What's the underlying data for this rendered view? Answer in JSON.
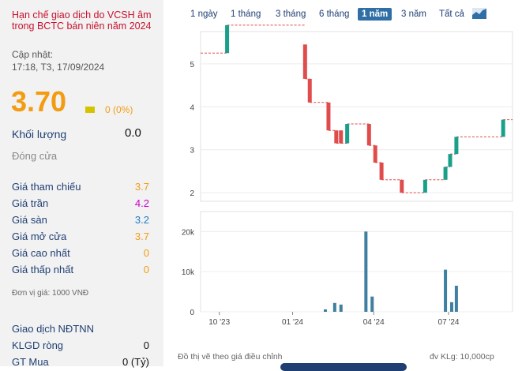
{
  "warning_text": "Hạn chế giao dịch do VCSH âm trong BCTC bán niên năm 2024",
  "update_label": "Cập nhật:",
  "update_value": "17:18, T3, 17/09/2024",
  "price": "3.70",
  "change": "0 (0%)",
  "colors": {
    "accent": "#f39c12",
    "up": "#1a9f8a",
    "down": "#e04b4b",
    "ceiling": "#cc00cc",
    "floor": "#1e7fc4",
    "nav": "#1f3f73"
  },
  "volume": {
    "label": "Khối lượng",
    "value": "0.0"
  },
  "close_label": "Đóng cửa",
  "stats": [
    {
      "label": "Giá tham chiếu",
      "value": "3.7",
      "color": "#f39c12"
    },
    {
      "label": "Giá trần",
      "value": "4.2",
      "color": "#cc00cc"
    },
    {
      "label": "Giá sàn",
      "value": "3.2",
      "color": "#1e7fc4"
    },
    {
      "label": "Giá mở cửa",
      "value": "3.7",
      "color": "#f39c12"
    },
    {
      "label": "Giá cao nhất",
      "value": "0",
      "color": "#f39c12"
    },
    {
      "label": "Giá thấp nhất",
      "value": "0",
      "color": "#f39c12"
    }
  ],
  "unit_note": "Đơn vị giá: 1000 VNĐ",
  "foreign": [
    {
      "label": "Giao dịch NĐTNN",
      "value": ""
    },
    {
      "label": "KLGD ròng",
      "value": "0"
    },
    {
      "label": "GT Mua",
      "value": "0 (Tỷ)"
    }
  ],
  "tabs": [
    "1 ngày",
    "1 tháng",
    "3 tháng",
    "6 tháng",
    "1 năm",
    "3 năm",
    "Tất cả"
  ],
  "active_tab": "1 năm",
  "chart_icon": "area-chart-icon",
  "chart_data": {
    "type": "candlestick",
    "price_axis": {
      "ticks": [
        2,
        3,
        4,
        5
      ],
      "ylim": [
        1.8,
        5.75
      ]
    },
    "volume_axis": {
      "ticks": [
        "0",
        "10k",
        "20k"
      ],
      "values": [
        0,
        10000,
        20000
      ],
      "ylim": [
        0,
        24000
      ]
    },
    "x_ticks": [
      {
        "label": "10 '23",
        "t": 0.06
      },
      {
        "label": "01 '24",
        "t": 0.295
      },
      {
        "label": "04 '24",
        "t": 0.555
      },
      {
        "label": "07 '24",
        "t": 0.795
      }
    ],
    "candles": [
      {
        "t": 0.085,
        "o": 5.25,
        "c": 5.9
      },
      {
        "t": 0.335,
        "o": 5.45,
        "c": 4.65
      },
      {
        "t": 0.35,
        "o": 4.65,
        "c": 4.1
      },
      {
        "t": 0.41,
        "o": 4.1,
        "c": 3.45
      },
      {
        "t": 0.435,
        "o": 3.45,
        "c": 3.15
      },
      {
        "t": 0.45,
        "o": 3.45,
        "c": 3.15
      },
      {
        "t": 0.47,
        "o": 3.15,
        "c": 3.6
      },
      {
        "t": 0.54,
        "o": 3.6,
        "c": 3.1
      },
      {
        "t": 0.56,
        "o": 3.1,
        "c": 2.7
      },
      {
        "t": 0.58,
        "o": 2.7,
        "c": 2.3
      },
      {
        "t": 0.645,
        "o": 2.3,
        "c": 2.0
      },
      {
        "t": 0.72,
        "o": 2.0,
        "c": 2.3
      },
      {
        "t": 0.785,
        "o": 2.3,
        "c": 2.6
      },
      {
        "t": 0.8,
        "o": 2.6,
        "c": 2.9
      },
      {
        "t": 0.82,
        "o": 2.9,
        "c": 3.3
      },
      {
        "t": 0.97,
        "o": 3.3,
        "c": 3.7
      }
    ],
    "volumes": [
      {
        "t": 0.4,
        "v": 600
      },
      {
        "t": 0.43,
        "v": 2200
      },
      {
        "t": 0.45,
        "v": 1800
      },
      {
        "t": 0.53,
        "v": 20000
      },
      {
        "t": 0.55,
        "v": 3800
      },
      {
        "t": 0.785,
        "v": 10500
      },
      {
        "t": 0.805,
        "v": 2400
      },
      {
        "t": 0.82,
        "v": 6500
      }
    ]
  },
  "footer_left": "Đồ thị vẽ theo giá điều chỉnh",
  "footer_right": "đv KLg: 10,000cp"
}
